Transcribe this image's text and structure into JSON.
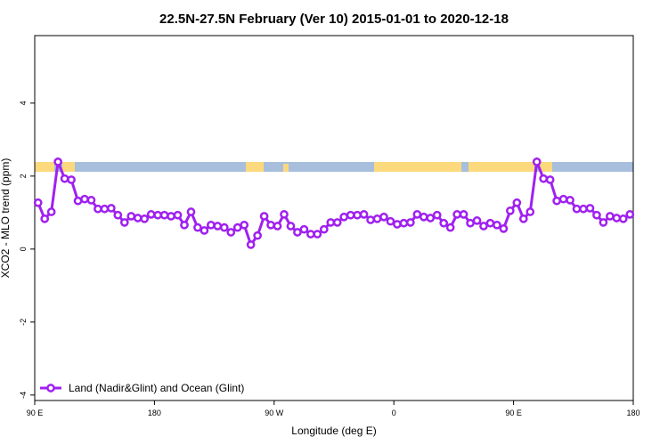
{
  "chart_data": {
    "type": "line",
    "title": "22.5N-27.5N February (Ver 10)   2015-01-01 to 2020-12-18",
    "xlabel": "Longitude (deg E)",
    "ylabel": "XCO2 - MLO trend (ppm)",
    "xlim": [
      90,
      540
    ],
    "ylim": [
      -4.15,
      5.85
    ],
    "xticks": [
      {
        "value": 90,
        "label": "90 E"
      },
      180,
      {
        "value": 270,
        "label": "90 W"
      },
      {
        "value": 360,
        "label": "0"
      },
      {
        "value": 450,
        "label": "90 E"
      },
      {
        "value": 540,
        "label": "180"
      }
    ],
    "yticks": [
      -4,
      -2,
      0,
      2,
      4
    ],
    "legend": "bottomleft",
    "x": [
      92.5,
      97.5,
      102.5,
      107.5,
      112.5,
      117.5,
      122.5,
      127.5,
      132.5,
      137.5,
      142.5,
      147.5,
      152.5,
      157.5,
      162.5,
      167.5,
      172.5,
      177.5,
      182.5,
      187.5,
      192.5,
      197.5,
      202.5,
      207.5,
      212.5,
      217.5,
      222.5,
      227.5,
      232.5,
      237.5,
      242.5,
      247.5,
      252.5,
      257.5,
      262.5,
      267.5,
      272.5,
      277.5,
      282.5,
      287.5,
      292.5,
      297.5,
      302.5,
      307.5,
      312.5,
      317.5,
      322.5,
      327.5,
      332.5,
      337.5,
      342.5,
      347.5,
      352.5,
      357.5,
      362.5,
      367.5,
      372.5,
      377.5,
      382.5,
      387.5,
      392.5,
      397.5,
      402.5,
      407.5,
      412.5,
      417.5,
      422.5,
      427.5,
      432.5,
      437.5,
      442.5,
      447.5,
      452.5,
      457.5,
      462.5,
      467.5,
      472.5,
      477.5,
      482.5,
      487.5,
      492.5,
      497.5,
      502.5,
      507.5,
      512.5,
      517.5,
      522.5,
      527.5,
      532.5,
      537.5
    ],
    "series": [
      {
        "name": "Land (Nadir&Glint) and Ocean (Glint)",
        "color": "#a020f0",
        "values": [
          1.27,
          0.83,
          1.02,
          2.39,
          1.93,
          1.9,
          1.32,
          1.37,
          1.34,
          1.1,
          1.1,
          1.12,
          0.93,
          0.73,
          0.9,
          0.85,
          0.83,
          0.95,
          0.93,
          0.93,
          0.9,
          0.93,
          0.66,
          1.02,
          0.59,
          0.51,
          0.66,
          0.63,
          0.59,
          0.46,
          0.59,
          0.66,
          0.12,
          0.37,
          0.9,
          0.66,
          0.63,
          0.95,
          0.63,
          0.46,
          0.54,
          0.41,
          0.41,
          0.54,
          0.73,
          0.73,
          0.88,
          0.93,
          0.93,
          0.95,
          0.8,
          0.83,
          0.88,
          0.76,
          0.68,
          0.71,
          0.73,
          0.95,
          0.88,
          0.85,
          0.93,
          0.71,
          0.59,
          0.95,
          0.95,
          0.71,
          0.78,
          0.63,
          0.71,
          0.66,
          0.56,
          1.05,
          1.27,
          0.83,
          1.02,
          2.39,
          1.93,
          1.9,
          1.32,
          1.37,
          1.34,
          1.1,
          1.1,
          1.12,
          0.93,
          0.73,
          0.9,
          0.85,
          0.83,
          0.95
        ]
      }
    ]
  }
}
